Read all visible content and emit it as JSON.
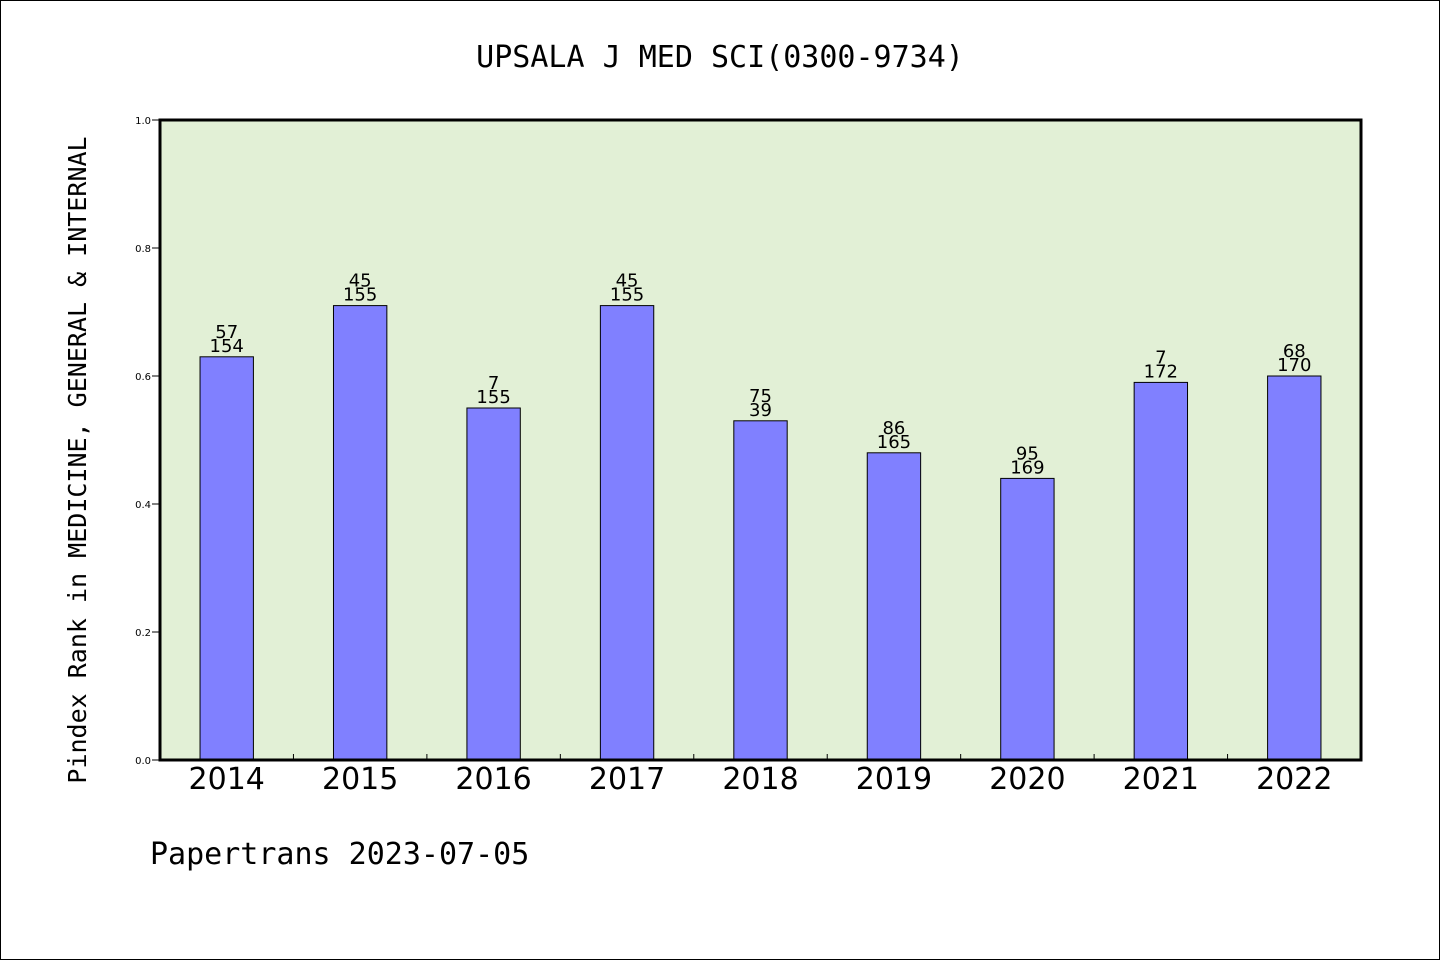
{
  "chart_data": {
    "type": "bar",
    "title": "UPSALA J MED SCI(0300-9734)",
    "ylabel": "Pindex Rank in MEDICINE, GENERAL & INTERNAL",
    "xlabel": "",
    "ylim": [
      0,
      1.0
    ],
    "yticks": [
      "0.0",
      "0.2",
      "0.4",
      "0.6",
      "0.8",
      "1.0"
    ],
    "categories": [
      "2014",
      "2015",
      "2016",
      "2017",
      "2018",
      "2019",
      "2020",
      "2021",
      "2022"
    ],
    "values": [
      0.63,
      0.71,
      0.55,
      0.71,
      0.53,
      0.48,
      0.44,
      0.59,
      0.6
    ],
    "rank": [
      "57",
      "45",
      "7",
      "45",
      "75",
      "86",
      "95",
      "7",
      "68"
    ],
    "total": [
      "154",
      "155",
      "155",
      "155",
      "39",
      "165",
      "169",
      "172",
      "170"
    ],
    "grid": false,
    "legend": "none",
    "colors": {
      "plot_background": "#e2f0d6",
      "bar_fill": "#8080ff",
      "bar_stroke": "#000000",
      "axis": "#000000"
    }
  },
  "footer": {
    "text": "Papertrans 2023-07-05"
  }
}
